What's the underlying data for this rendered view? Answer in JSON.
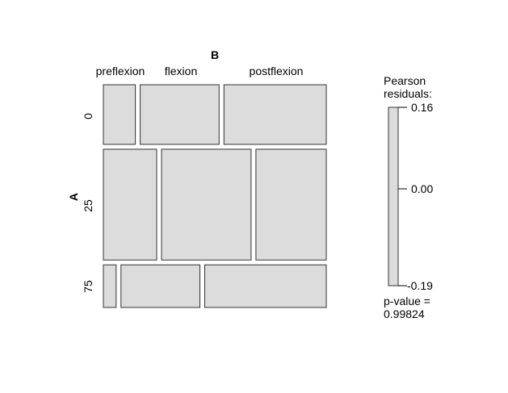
{
  "chart_data": {
    "type": "mosaic",
    "row_variable": "A",
    "col_variable": "B",
    "rows": [
      "0",
      "25",
      "75"
    ],
    "cols": [
      "preflexion",
      "flexion",
      "postflexion"
    ],
    "cell_proportions": [
      [
        0.15,
        0.37,
        0.48
      ],
      [
        0.25,
        0.42,
        0.33
      ],
      [
        0.06,
        0.37,
        0.57
      ]
    ],
    "row_proportions": [
      0.28,
      0.52,
      0.2
    ],
    "legend": {
      "title_line1": "Pearson",
      "title_line2": "residuals:",
      "ticks": [
        "0.16",
        "0.00",
        "-0.19"
      ],
      "tick_values": [
        0.16,
        0.0,
        -0.19
      ]
    },
    "pvalue_line1": "p-value =",
    "pvalue_line2": "0.99824",
    "colors": {
      "tile_fill": "#dcdcdc",
      "tile_stroke": "#333333",
      "legend_fill": "#dcdcdc"
    }
  }
}
